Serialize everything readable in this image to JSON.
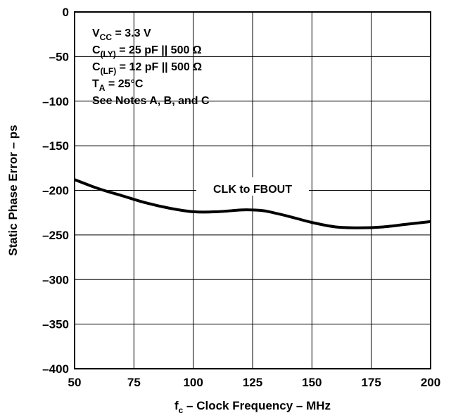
{
  "chart_data": {
    "type": "line",
    "xlabel": {
      "main": "f",
      "sub": "c",
      "rest": " – Clock Frequency – MHz"
    },
    "ylabel": "Static Phase Error – ps",
    "xlim": [
      50,
      200
    ],
    "ylim": [
      -400,
      0
    ],
    "xticks": [
      50,
      75,
      100,
      125,
      150,
      175,
      200
    ],
    "yticks": [
      0,
      -50,
      -100,
      -150,
      -200,
      -250,
      -300,
      -350,
      -400
    ],
    "xtick_labels": [
      "50",
      "75",
      "100",
      "125",
      "150",
      "175",
      "200"
    ],
    "ytick_labels": [
      "0",
      "–50",
      "–100",
      "–150",
      "–200",
      "–250",
      "–300",
      "–350",
      "–400"
    ],
    "grid": true,
    "series": [
      {
        "name": "CLK to FBOUT",
        "x": [
          50,
          60,
          70,
          80,
          90,
          100,
          110,
          120,
          125,
          130,
          140,
          150,
          160,
          170,
          180,
          190,
          200
        ],
        "y": [
          -188,
          -198,
          -206,
          -214,
          -220,
          -224,
          -224,
          -222,
          -222,
          -223,
          -229,
          -236,
          -241,
          -242,
          -241,
          -238,
          -235
        ]
      }
    ],
    "conditions": [
      {
        "pre": "V",
        "sub": "CC",
        "post": " = 3.3 V"
      },
      {
        "pre": "C",
        "sub": "(LY)",
        "post": " = 25 pF || 500 Ω"
      },
      {
        "pre": "C",
        "sub": "(LF)",
        "post": " = 12 pF || 500 Ω"
      },
      {
        "pre": "T",
        "sub": "A",
        "post": " = 25°C"
      },
      {
        "pre": "",
        "sub": "",
        "post": "See Notes A, B, and C"
      }
    ],
    "series_label": {
      "text": "CLK to FBOUT",
      "x": 125,
      "y": -198
    }
  }
}
